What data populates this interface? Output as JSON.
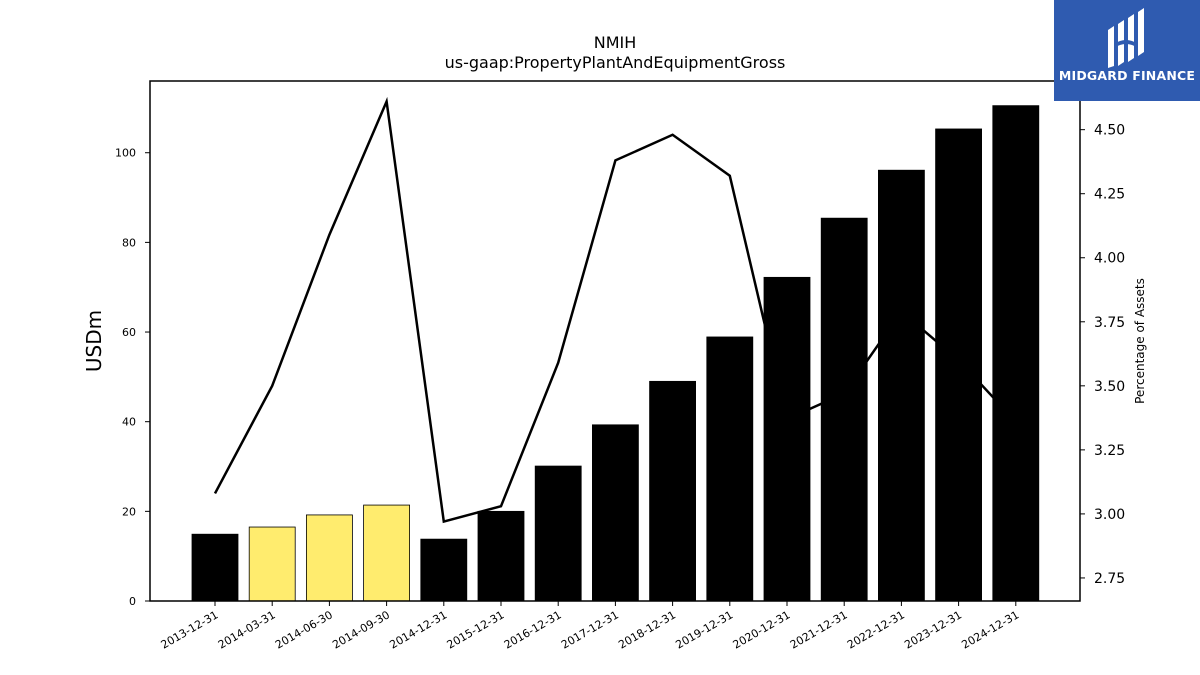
{
  "chart_data": {
    "type": "bar",
    "title": "NMIH",
    "subtitle": "us-gaap:PropertyPlantAndEquipmentGross",
    "ylabel": "USDm",
    "y2label": "Percentage of Assets",
    "ylim": [
      0,
      116
    ],
    "y2lim": [
      2.66,
      4.69
    ],
    "yticks": [
      0,
      20,
      40,
      60,
      80,
      100
    ],
    "y2ticks": [
      "2.75",
      "3.00",
      "3.25",
      "3.50",
      "3.75",
      "4.00",
      "4.25",
      "4.50"
    ],
    "categories": [
      "2013-12-31",
      "2014-03-31",
      "2014-06-30",
      "2014-09-30",
      "2014-12-31",
      "2015-12-31",
      "2016-12-31",
      "2017-12-31",
      "2018-12-31",
      "2019-12-31",
      "2020-12-31",
      "2021-12-31",
      "2022-12-31",
      "2023-12-31",
      "2024-12-31"
    ],
    "series": [
      {
        "type": "bar",
        "axis": "left",
        "values": [
          14.9,
          16.5,
          19.2,
          21.4,
          13.8,
          20.0,
          30.1,
          39.3,
          49.0,
          58.9,
          72.2,
          85.4,
          96.1,
          105.3,
          110.5
        ],
        "colors": [
          "#000000",
          "#ffec6e",
          "#ffec6e",
          "#ffec6e",
          "#000000",
          "#000000",
          "#000000",
          "#000000",
          "#000000",
          "#000000",
          "#000000",
          "#000000",
          "#000000",
          "#000000",
          "#000000"
        ]
      },
      {
        "type": "line",
        "axis": "right",
        "color": "#000000",
        "values": [
          3.08,
          3.5,
          4.09,
          4.61,
          2.97,
          3.03,
          3.59,
          4.38,
          4.48,
          4.32,
          3.37,
          3.47,
          3.79,
          3.6,
          3.36
        ]
      }
    ],
    "grid": false
  },
  "logo": {
    "text": "MIDGARD FINANCE"
  }
}
